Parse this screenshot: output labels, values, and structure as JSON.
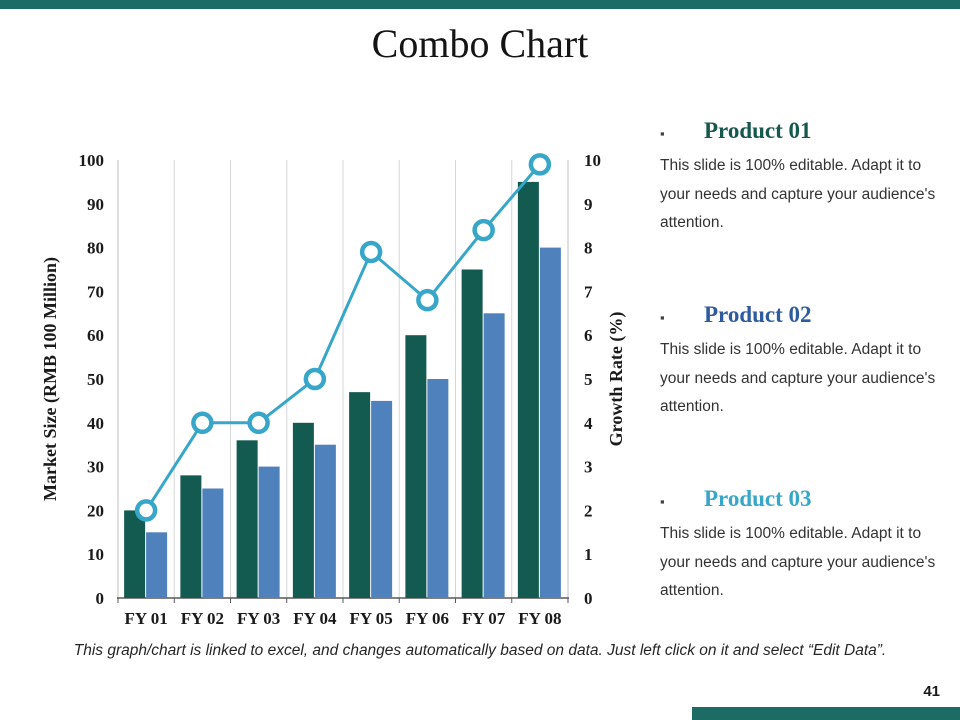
{
  "slide": {
    "title": "Combo Chart",
    "page_number": "41",
    "footer_note": "This graph/chart is linked to excel, and changes automatically based on data. Just left click on it and select “Edit Data”."
  },
  "colors": {
    "accent_teal": "#1c6b64",
    "bar_dark": "#135a50",
    "bar_blue": "#4f81bd",
    "line_cyan": "#38a6c8",
    "grid": "#d6d6d6",
    "axis": "#595959",
    "tick_text": "#1a1a1a"
  },
  "products": [
    {
      "label": "Product 01",
      "color": "#17584e",
      "description": "This slide is 100% editable. Adapt it to your needs and capture your audience's attention."
    },
    {
      "label": "Product 02",
      "color": "#2d5b9e",
      "description": "This slide is 100% editable. Adapt it to your needs and capture your audience's attention."
    },
    {
      "label": "Product 03",
      "color": "#38a6c8",
      "description": "This slide is 100% editable. Adapt it to your needs and capture your audience's attention."
    }
  ],
  "chart_data": {
    "type": "combo",
    "categories": [
      "FY 01",
      "FY 02",
      "FY 03",
      "FY 04",
      "FY 05",
      "FY 06",
      "FY 07",
      "FY 08"
    ],
    "series": [
      {
        "name": "Market Size (dark bars)",
        "kind": "bar",
        "axis": "left",
        "color": "#135a50",
        "values": [
          20,
          28,
          36,
          40,
          47,
          60,
          75,
          95
        ]
      },
      {
        "name": "Market Size (blue bars)",
        "kind": "bar",
        "axis": "left",
        "color": "#4f81bd",
        "values": [
          15,
          25,
          30,
          35,
          45,
          50,
          65,
          80
        ]
      },
      {
        "name": "Growth Rate (line)",
        "kind": "line",
        "axis": "right",
        "color": "#38a6c8",
        "values": [
          2,
          4,
          4,
          5,
          7.9,
          6.8,
          8.4,
          9.9
        ]
      }
    ],
    "left_axis": {
      "label": "Market Size (RMB 100 Million)",
      "min": 0,
      "max": 100,
      "step": 10
    },
    "right_axis": {
      "label": "Growth Rate (%)",
      "min": 0,
      "max": 10,
      "step": 1
    },
    "grid": "vertical",
    "legend": "none"
  }
}
